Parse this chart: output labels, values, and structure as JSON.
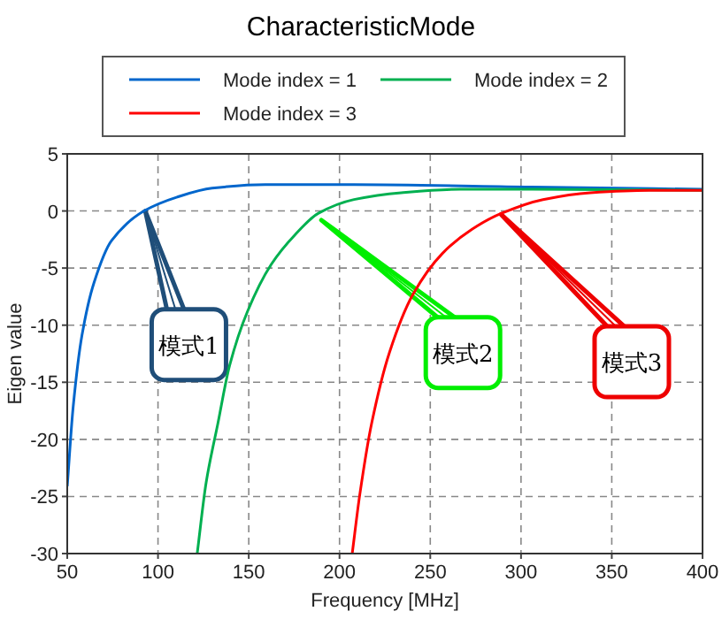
{
  "chart_data": {
    "type": "line",
    "title": "CharacteristicMode",
    "xlabel": "Frequency [MHz]",
    "ylabel": "Eigen value",
    "xlim": [
      50,
      400
    ],
    "ylim": [
      -30,
      5
    ],
    "xticks": [
      50,
      100,
      150,
      200,
      250,
      300,
      350,
      400
    ],
    "yticks": [
      -30,
      -25,
      -20,
      -15,
      -10,
      -5,
      0,
      5
    ],
    "grid": true,
    "legend": "top",
    "line_style": "solid",
    "marker": "none",
    "series": [
      {
        "name": "Mode index = 1",
        "color": "#0066cc",
        "x": [
          50,
          53.3,
          58.1,
          64.7,
          74.4,
          92.3,
          110.2,
          129.8,
          159,
          208,
          305.6,
          400
        ],
        "values": [
          -24.1,
          -17.1,
          -10.9,
          -6.3,
          -2.6,
          0,
          1.2,
          2.0,
          2.3,
          2.3,
          2.1,
          1.9
        ]
      },
      {
        "name": "Mode index = 2",
        "color": "#00b050",
        "x": [
          121.6,
          126.5,
          133,
          139.5,
          149.3,
          162.3,
          175.4,
          188.4,
          208,
          234,
          266.5,
          305.6,
          400
        ],
        "values": [
          -30,
          -23.8,
          -18.6,
          -13.5,
          -8.8,
          -4.7,
          -2.1,
          -0.2,
          1.0,
          1.6,
          1.9,
          1.9,
          1.8
        ]
      },
      {
        "name": "Mode index = 3",
        "color": "#ff0000",
        "x": [
          207,
          211.2,
          217.7,
          227.5,
          240.5,
          256.8,
          273,
          289.3,
          312.1,
          338.2,
          370.7,
          400
        ],
        "values": [
          -30,
          -24.8,
          -18.6,
          -12.4,
          -7.3,
          -3.7,
          -1.6,
          -0.2,
          1.0,
          1.6,
          1.8,
          1.8
        ]
      }
    ],
    "annotations": [
      {
        "text": "模式1",
        "x": 93,
        "y": 0
      },
      {
        "text": "模式2",
        "x": 190,
        "y": -0.8
      },
      {
        "text": "模式3",
        "x": 289,
        "y": -0.3
      }
    ]
  }
}
